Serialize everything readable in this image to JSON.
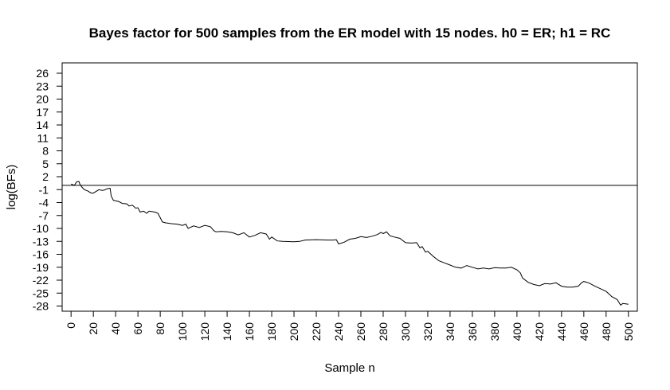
{
  "chart_data": {
    "type": "line",
    "title": "Bayes factor for 500 samples from the ER model with 15 nodes. h0 = ER; h1 = RC",
    "xlabel": "Sample n",
    "ylabel": "log(BFs)",
    "xlim": [
      -8,
      508
    ],
    "ylim": [
      -29.2,
      28.4
    ],
    "x_ticks": [
      0,
      20,
      40,
      60,
      80,
      100,
      120,
      140,
      160,
      180,
      200,
      220,
      240,
      260,
      280,
      300,
      320,
      340,
      360,
      380,
      400,
      420,
      440,
      460,
      480,
      500
    ],
    "y_ticks": [
      -28,
      -25,
      -22,
      -19,
      -16,
      -13,
      -10,
      -7,
      -4,
      -1,
      2,
      5,
      8,
      11,
      14,
      17,
      20,
      23,
      26
    ],
    "reference_line_y": 0,
    "grid": false,
    "series": [
      {
        "color": "#000000",
        "x": [
          0,
          3,
          5,
          7,
          8,
          10,
          12,
          15,
          18,
          20,
          25,
          28,
          30,
          32,
          35,
          36,
          38,
          40,
          43,
          46,
          50,
          52,
          55,
          58,
          60,
          62,
          65,
          68,
          70,
          75,
          78,
          80,
          82,
          85,
          90,
          95,
          100,
          103,
          105,
          110,
          115,
          120,
          125,
          128,
          130,
          135,
          140,
          145,
          150,
          155,
          160,
          165,
          170,
          175,
          178,
          180,
          185,
          190,
          200,
          205,
          210,
          220,
          230,
          235,
          238,
          240,
          245,
          250,
          255,
          260,
          265,
          270,
          275,
          278,
          280,
          283,
          286,
          290,
          295,
          300,
          305,
          310,
          313,
          315,
          318,
          320,
          325,
          330,
          335,
          340,
          345,
          350,
          355,
          360,
          365,
          370,
          375,
          380,
          385,
          390,
          395,
          400,
          403,
          405,
          410,
          415,
          420,
          425,
          430,
          435,
          440,
          445,
          450,
          455,
          458,
          460,
          465,
          470,
          475,
          480,
          483,
          485,
          490,
          493,
          495,
          500
        ],
        "values": [
          0.3,
          0.0,
          0.8,
          0.9,
          0.2,
          -0.5,
          -1.0,
          -1.3,
          -1.8,
          -1.8,
          -1.0,
          -1.2,
          -1.1,
          -0.8,
          -0.7,
          -2.5,
          -3.5,
          -3.6,
          -3.8,
          -4.2,
          -4.3,
          -4.8,
          -4.6,
          -5.3,
          -5.2,
          -6.2,
          -6.0,
          -6.5,
          -6.0,
          -6.2,
          -6.5,
          -7.5,
          -8.5,
          -8.7,
          -8.9,
          -9.0,
          -9.3,
          -9.0,
          -10.0,
          -9.4,
          -9.8,
          -9.3,
          -9.6,
          -10.5,
          -10.8,
          -10.7,
          -10.8,
          -11.0,
          -11.5,
          -11.0,
          -12.0,
          -11.6,
          -11.0,
          -11.3,
          -12.5,
          -12.0,
          -12.9,
          -13.0,
          -13.1,
          -13.0,
          -12.7,
          -12.6,
          -12.7,
          -12.7,
          -12.6,
          -13.6,
          -13.2,
          -12.5,
          -12.3,
          -11.9,
          -12.1,
          -11.8,
          -11.4,
          -10.9,
          -11.2,
          -10.8,
          -11.7,
          -12.0,
          -12.3,
          -13.3,
          -13.4,
          -13.3,
          -14.5,
          -14.2,
          -15.5,
          -15.3,
          -16.5,
          -17.5,
          -18.0,
          -18.5,
          -19.0,
          -19.2,
          -18.6,
          -19.0,
          -19.4,
          -19.2,
          -19.4,
          -19.1,
          -19.2,
          -19.2,
          -19.0,
          -19.6,
          -20.3,
          -21.5,
          -22.5,
          -23.0,
          -23.3,
          -22.8,
          -22.9,
          -22.6,
          -23.4,
          -23.6,
          -23.6,
          -23.4,
          -22.6,
          -22.3,
          -22.7,
          -23.4,
          -24.0,
          -24.6,
          -25.3,
          -25.8,
          -26.5,
          -27.8,
          -27.4,
          -27.6
        ]
      }
    ]
  }
}
